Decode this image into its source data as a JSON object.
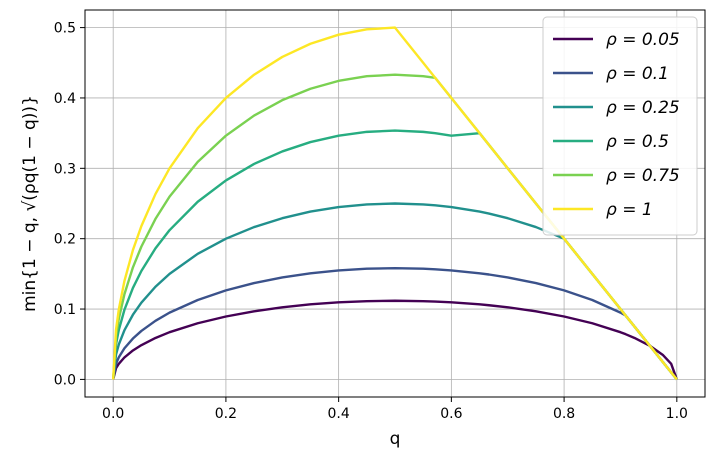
{
  "chart_data": {
    "type": "line",
    "title": "",
    "xlabel": "q",
    "ylabel": "min{1 − q, √(ρq(1 − q))}",
    "xlim": [
      -0.05,
      1.05
    ],
    "ylim": [
      -0.025,
      0.525
    ],
    "xticks": [
      0.0,
      0.2,
      0.4,
      0.6,
      0.8,
      1.0
    ],
    "xtick_labels": [
      "0.0",
      "0.2",
      "0.4",
      "0.6",
      "0.8",
      "1.0"
    ],
    "yticks": [
      0.0,
      0.1,
      0.2,
      0.3,
      0.4,
      0.5
    ],
    "ytick_labels": [
      "0.0",
      "0.1",
      "0.2",
      "0.3",
      "0.4",
      "0.5"
    ],
    "grid": true,
    "legend_position": "top-right",
    "x": [
      0.0,
      0.005,
      0.01,
      0.02,
      0.035,
      0.05,
      0.075,
      0.1,
      0.15,
      0.2,
      0.25,
      0.3,
      0.35,
      0.4,
      0.45,
      0.5,
      0.55,
      0.5714,
      0.6,
      0.65,
      0.6667,
      0.7,
      0.75,
      0.8,
      0.85,
      0.9,
      0.9091,
      0.925,
      0.95,
      0.9524,
      0.975,
      0.99,
      1.0
    ],
    "series": [
      {
        "name": "ρ = 0.05",
        "color": "#440154",
        "values": [
          0.0,
          0.0158,
          0.0222,
          0.0313,
          0.0411,
          0.0487,
          0.0589,
          0.0671,
          0.0798,
          0.0894,
          0.0968,
          0.1025,
          0.1067,
          0.1095,
          0.1112,
          0.1118,
          0.1112,
          0.1106,
          0.1095,
          0.1067,
          0.1054,
          0.1025,
          0.0968,
          0.0894,
          0.0798,
          0.0671,
          0.0643,
          0.0589,
          0.0487,
          0.0476,
          0.0349,
          0.0222,
          0.0
        ]
      },
      {
        "name": "ρ = 0.1",
        "color": "#3b528b",
        "values": [
          0.0,
          0.0223,
          0.0315,
          0.0443,
          0.0581,
          0.0689,
          0.0833,
          0.0949,
          0.1129,
          0.1265,
          0.1369,
          0.1449,
          0.1508,
          0.1549,
          0.1573,
          0.1581,
          0.1573,
          0.1565,
          0.1549,
          0.1508,
          0.1491,
          0.1449,
          0.1369,
          0.1265,
          0.1129,
          0.0949,
          0.0909,
          0.075,
          0.05,
          0.0476,
          0.025,
          0.01,
          0.0
        ]
      },
      {
        "name": "ρ = 0.25",
        "color": "#21908d",
        "values": [
          0.0,
          0.0353,
          0.0497,
          0.07,
          0.0919,
          0.109,
          0.1317,
          0.15,
          0.1785,
          0.2,
          0.2165,
          0.2291,
          0.2385,
          0.2449,
          0.2487,
          0.25,
          0.2487,
          0.2474,
          0.2449,
          0.2385,
          0.2357,
          0.2291,
          0.2165,
          0.2,
          0.15,
          0.1,
          0.0909,
          0.075,
          0.05,
          0.0476,
          0.025,
          0.01,
          0.0
        ]
      },
      {
        "name": "ρ = 0.5",
        "color": "#27ad81",
        "values": [
          0.0,
          0.0499,
          0.0704,
          0.099,
          0.13,
          0.1541,
          0.1862,
          0.2121,
          0.2525,
          0.2828,
          0.3062,
          0.324,
          0.3373,
          0.3464,
          0.3518,
          0.3536,
          0.3518,
          0.3499,
          0.3464,
          0.35,
          0.3333,
          0.3,
          0.25,
          0.2,
          0.15,
          0.1,
          0.0909,
          0.075,
          0.05,
          0.0476,
          0.025,
          0.01,
          0.0
        ]
      },
      {
        "name": "ρ = 0.75",
        "color": "#7ad151",
        "values": [
          0.0,
          0.0611,
          0.0862,
          0.1212,
          0.1592,
          0.1887,
          0.2281,
          0.2598,
          0.3092,
          0.3464,
          0.375,
          0.3969,
          0.4131,
          0.4243,
          0.4309,
          0.433,
          0.4309,
          0.4286,
          0.4,
          0.35,
          0.3333,
          0.3,
          0.25,
          0.2,
          0.15,
          0.1,
          0.0909,
          0.075,
          0.05,
          0.0476,
          0.025,
          0.01,
          0.0
        ]
      },
      {
        "name": "ρ = 1",
        "color": "#fde725",
        "values": [
          0.0,
          0.0705,
          0.0995,
          0.14,
          0.1838,
          0.2179,
          0.2634,
          0.3,
          0.3571,
          0.4,
          0.433,
          0.4583,
          0.477,
          0.4899,
          0.4975,
          0.5,
          0.45,
          0.4286,
          0.4,
          0.35,
          0.3333,
          0.3,
          0.25,
          0.2,
          0.15,
          0.1,
          0.0909,
          0.075,
          0.05,
          0.0476,
          0.025,
          0.01,
          0.0
        ]
      }
    ]
  }
}
